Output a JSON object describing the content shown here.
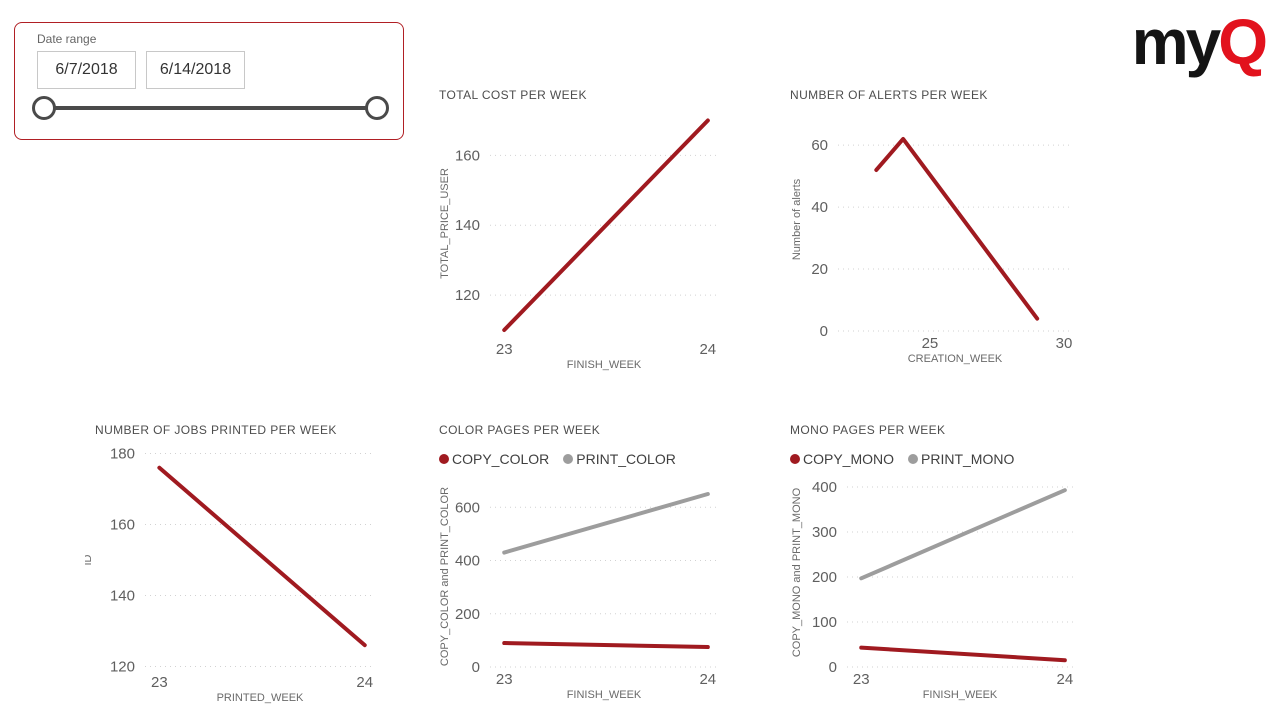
{
  "slicer": {
    "label": "Date range",
    "start_date": "6/7/2018",
    "end_date": "6/14/2018"
  },
  "logo": {
    "my": "my",
    "q": "Q"
  },
  "colors": {
    "accent_red": "#a01a20",
    "series_gray": "#9d9d9d",
    "grid": "#d2d2d2",
    "slicer_border": "#b01f24",
    "logo_red": "#e2121d"
  },
  "chart_data": [
    {
      "id": "total-cost-per-week",
      "type": "line",
      "title": "TOTAL COST PER WEEK",
      "xlabel": "FINISH_WEEK",
      "ylabel": "TOTAL_PRICE_USER",
      "xlim": [
        22.93,
        24.05
      ],
      "ylim": [
        108,
        173
      ],
      "x_ticks": [
        23,
        24
      ],
      "y_ticks": [
        120,
        140,
        160
      ],
      "grid": "dotted",
      "legend": false,
      "series": [
        {
          "name": "TOTAL_PRICE_USER",
          "color": "#a01a20",
          "points": [
            [
              23,
              110
            ],
            [
              24,
              170
            ]
          ]
        }
      ]
    },
    {
      "id": "alerts-per-week",
      "type": "line",
      "title": "NUMBER OF ALERTS PER WEEK",
      "xlabel": "CREATION_WEEK",
      "ylabel": "Number of alerts",
      "xlim": [
        21.57,
        30.3
      ],
      "ylim": [
        0,
        72
      ],
      "x_ticks": [
        25,
        30
      ],
      "y_ticks": [
        0,
        20,
        40,
        60
      ],
      "grid": "dotted",
      "legend": false,
      "series": [
        {
          "name": "Number of alerts",
          "color": "#a01a20",
          "points": [
            [
              23,
              52
            ],
            [
              24,
              62
            ],
            [
              29,
              4
            ]
          ]
        }
      ]
    },
    {
      "id": "jobs-printed-per-week",
      "type": "line",
      "title": "NUMBER OF JOBS PRINTED PER WEEK",
      "xlabel": "PRINTED_WEEK",
      "ylabel": "ID",
      "xlim": [
        22.93,
        24.05
      ],
      "ylim": [
        119,
        181
      ],
      "x_ticks": [
        23,
        24
      ],
      "y_ticks": [
        120,
        140,
        160,
        180
      ],
      "grid": "dotted",
      "legend": false,
      "series": [
        {
          "name": "ID",
          "color": "#a01a20",
          "points": [
            [
              23,
              176
            ],
            [
              24,
              126
            ]
          ]
        }
      ]
    },
    {
      "id": "color-pages-per-week",
      "type": "line",
      "title": "COLOR PAGES PER WEEK",
      "xlabel": "FINISH_WEEK",
      "ylabel": "COPY_COLOR and PRINT_COLOR",
      "xlim": [
        22.93,
        24.05
      ],
      "ylim": [
        0,
        680
      ],
      "x_ticks": [
        23,
        24
      ],
      "y_ticks": [
        0,
        200,
        400,
        600
      ],
      "grid": "dotted",
      "legend": true,
      "series": [
        {
          "name": "COPY_COLOR",
          "color": "#a01a20",
          "points": [
            [
              23,
              90
            ],
            [
              24,
              75
            ]
          ]
        },
        {
          "name": "PRINT_COLOR",
          "color": "#9d9d9d",
          "points": [
            [
              23,
              430
            ],
            [
              24,
              650
            ]
          ]
        }
      ]
    },
    {
      "id": "mono-pages-per-week",
      "type": "line",
      "title": "MONO PAGES PER WEEK",
      "xlabel": "FINISH_WEEK",
      "ylabel": "COPY_MONO and PRINT_MONO",
      "xlim": [
        22.93,
        24.04
      ],
      "ylim": [
        0,
        420
      ],
      "x_ticks": [
        23,
        24
      ],
      "y_ticks": [
        0,
        100,
        200,
        300,
        400
      ],
      "grid": "dotted",
      "legend": true,
      "series": [
        {
          "name": "COPY_MONO",
          "color": "#a01a20",
          "points": [
            [
              23,
              43
            ],
            [
              24,
              15
            ]
          ]
        },
        {
          "name": "PRINT_MONO",
          "color": "#9d9d9d",
          "points": [
            [
              23,
              197
            ],
            [
              24,
              393
            ]
          ]
        }
      ]
    }
  ]
}
